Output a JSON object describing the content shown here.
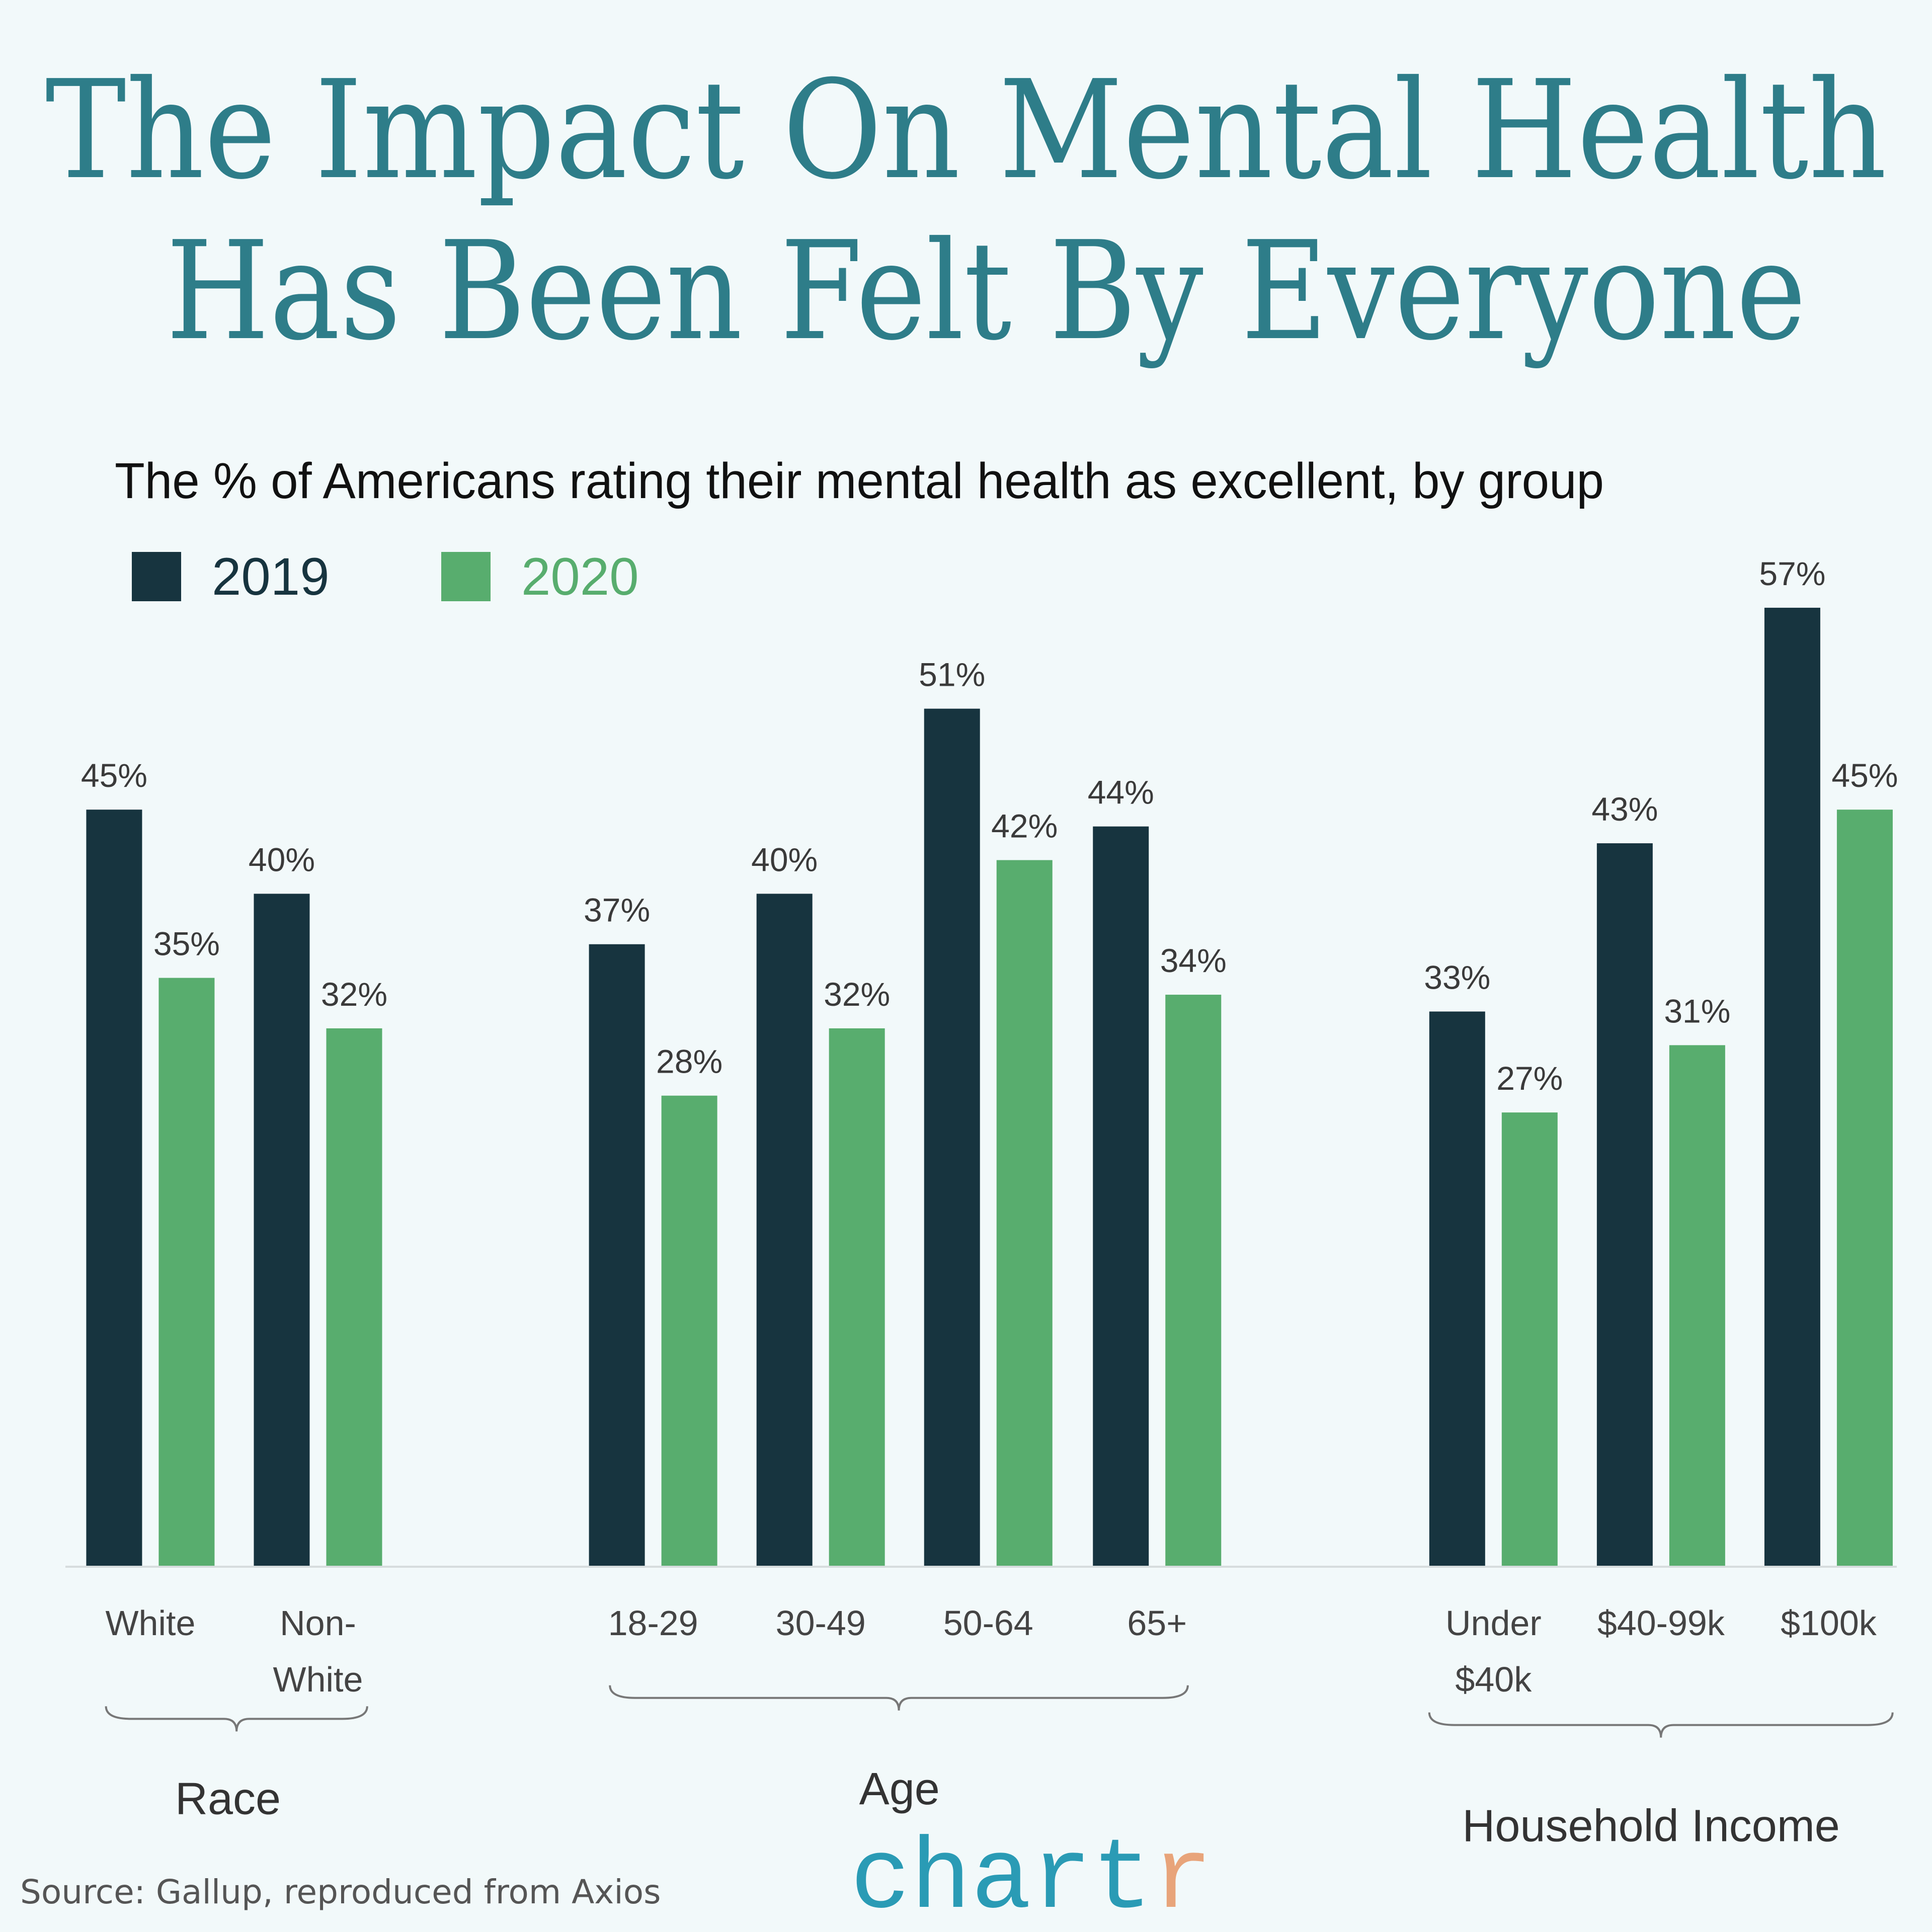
{
  "title": {
    "line1": "The Impact On Mental Health",
    "line2": "Has Been Felt By Everyone"
  },
  "source": "Source: Gallup, reproduced from Axios",
  "logo": {
    "main": "chart",
    "accent": "r",
    "main_color": "#2a9bb5",
    "accent_color": "#e8a47a"
  },
  "chart_data": {
    "type": "bar",
    "title": "The % of Americans rating their mental health as excellent, by group",
    "legend_position": "top-left",
    "grid": false,
    "ylim": [
      0,
      60
    ],
    "series": [
      {
        "name": "2019",
        "color": "#17343f",
        "values": [
          45,
          40,
          37,
          40,
          51,
          44,
          33,
          43,
          57
        ]
      },
      {
        "name": "2020",
        "color": "#58ad6e",
        "values": [
          35,
          32,
          28,
          32,
          42,
          34,
          27,
          31,
          45
        ]
      }
    ],
    "value_labels": {
      "2019": [
        "45%",
        "40%",
        "37%",
        "40%",
        "51%",
        "44%",
        "33%",
        "43%",
        "57%"
      ],
      "2020": [
        "35%",
        "32%",
        "28%",
        "32%",
        "42%",
        "34%",
        "27%",
        "31%",
        "45%"
      ]
    },
    "categories": [
      [
        "White"
      ],
      [
        "Non-",
        "White"
      ],
      [
        "18-29"
      ],
      [
        "30-49"
      ],
      [
        "50-64"
      ],
      [
        "65+"
      ],
      [
        "Under",
        "$40k"
      ],
      [
        "$40-99k"
      ],
      [
        "$100k"
      ]
    ],
    "groups": [
      {
        "label": "Race",
        "categories": [
          0,
          1
        ]
      },
      {
        "label": "Age",
        "categories": [
          2,
          3,
          4,
          5
        ]
      },
      {
        "label": "Household Income",
        "categories": [
          6,
          7,
          8
        ]
      }
    ]
  }
}
